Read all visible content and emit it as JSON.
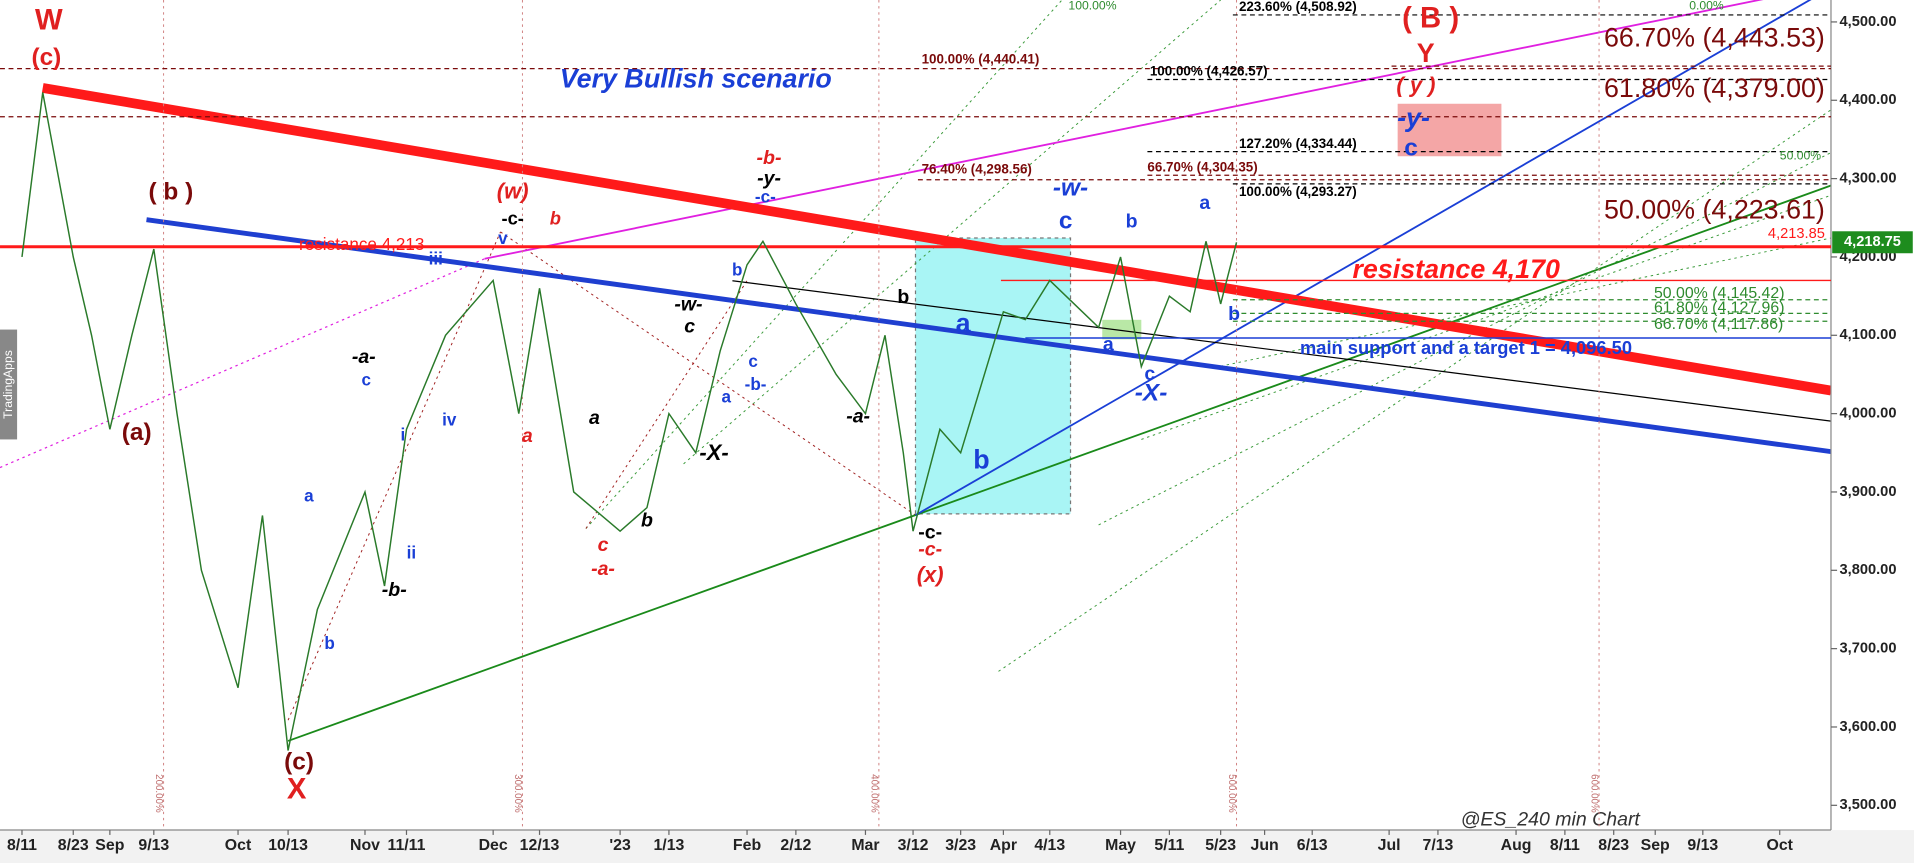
{
  "chart_data": {
    "type": "line",
    "title": "Very Bullish scenario",
    "footer": "@ES_240 min Chart",
    "brand": "TradingApps",
    "color": "#2a7a2a",
    "ylim": [
      3470,
      4528
    ],
    "yticks": [
      {
        "value": 3500,
        "label": "3,500.00"
      },
      {
        "value": 3600,
        "label": "3,600.00"
      },
      {
        "value": 3700,
        "label": "3,700.00"
      },
      {
        "value": 3800,
        "label": "3,800.00"
      },
      {
        "value": 3900,
        "label": "3,900.00"
      },
      {
        "value": 4000,
        "label": "4,000.00"
      },
      {
        "value": 4100,
        "label": "4,100.00"
      },
      {
        "value": 4200,
        "label": "4,200.00"
      },
      {
        "value": 4300,
        "label": "4,300.00"
      },
      {
        "value": 4400,
        "label": "4,400.00"
      },
      {
        "value": 4500,
        "label": "4,500.00"
      }
    ],
    "categories": [
      "8/11",
      null,
      "8/23",
      null,
      "Sep",
      null,
      "9/13",
      null,
      null,
      "Oct",
      null,
      "10/13",
      null,
      "Nov",
      null,
      "11/11",
      null,
      "Dec",
      null,
      "12/13",
      null,
      "'23",
      null,
      "1/13",
      null,
      null,
      "Feb",
      null,
      "2/12",
      null,
      "Mar",
      null,
      null,
      "3/12",
      null,
      "3/23",
      "Apr",
      null,
      "4/13",
      null,
      null,
      "May",
      null,
      "5/11",
      null,
      null,
      "5/23",
      null,
      "Jun",
      "6/13",
      "Jul",
      "7/13",
      "Aug",
      "8/11",
      "8/23",
      "Sep",
      "9/13",
      "Oct"
    ],
    "values": [
      4200,
      4410,
      4200,
      4100,
      3980,
      4100,
      4210,
      4000,
      3800,
      3650,
      3870,
      3570,
      3750,
      3900,
      3780,
      3980,
      4100,
      4170,
      4000,
      4160,
      3900,
      3850,
      3880,
      4000,
      3950,
      4080,
      4190,
      4220,
      4140,
      4050,
      4000,
      4100,
      3950,
      3850,
      3980,
      3950,
      4130,
      4120,
      4170,
      4140,
      4110,
      4200,
      4060,
      4150,
      4130,
      4220,
      4140,
      4218.75,
      null,
      null,
      null,
      null,
      null,
      null,
      null,
      null,
      null,
      null
    ],
    "last": {
      "value": 4218.75,
      "label": "4,218.75"
    },
    "levels": [
      {
        "value": 4508.92,
        "label": "223.60% (4,508.92)",
        "color": "#000000"
      },
      {
        "value": 4440.41,
        "label": "100.00% (4,440.41)",
        "color": "#7a0a0a"
      },
      {
        "value": 4426.57,
        "label": "100.00% (4,426.57)",
        "color": "#000000"
      },
      {
        "value": 4443.53,
        "label": "66.70% (4,443.53)",
        "color": "#7a0a0a"
      },
      {
        "value": 4379,
        "label": "61.80% (4,379.00)",
        "color": "#7a0a0a"
      },
      {
        "value": 4334.44,
        "label": "127.20% (4,334.44)",
        "color": "#000000"
      },
      {
        "value": 4304.35,
        "label": "66.70% (4,304.35)",
        "color": "#7a0a0a"
      },
      {
        "value": 4298.56,
        "label": "76.40% (4,298.56)",
        "color": "#7a0a0a"
      },
      {
        "value": 4293.27,
        "label": "100.00% (4,293.27)",
        "color": "#000000"
      },
      {
        "value": 4223.61,
        "label": "50.00% (4,223.61)",
        "color": "#7a0a0a"
      },
      {
        "value": 4213,
        "label": "resistance 4,213",
        "color": "#ff1a1a"
      },
      {
        "value": 4170,
        "label": "resistance 4,170",
        "color": "#ff1a1a"
      },
      {
        "value": 4145.42,
        "label": "50.00% (4,145.42)",
        "color": "#2e8b2e"
      },
      {
        "value": 4127.96,
        "label": "61.80% (4,127.96)",
        "color": "#2e8b2e"
      },
      {
        "value": 4117.86,
        "label": "66.70% (4,117.86)",
        "color": "#2e8b2e"
      },
      {
        "value": 4096.5,
        "label": "main support and a target 1 = 4,096.50",
        "color": "#1a3fd6"
      },
      {
        "value": 4213.85,
        "label": "4,213.85",
        "color": "#ff1a1a"
      }
    ],
    "time_fibs": [
      "200.00%",
      "300.00%",
      "400.00%",
      "500.00%",
      "600.00%"
    ],
    "labels": [
      {
        "text": "W",
        "color": "#e02020"
      },
      {
        "text": "(c)",
        "color": "#e02020"
      },
      {
        "text": "( b )",
        "color": "#7a0a0a"
      },
      {
        "text": "(a)",
        "color": "#7a0a0a"
      },
      {
        "text": "(c)",
        "color": "#7a0a0a"
      },
      {
        "text": "X",
        "color": "#e02020"
      },
      {
        "text": "(w)",
        "color": "#e02020"
      },
      {
        "text": "-c-",
        "color": "#000000"
      },
      {
        "text": "b",
        "color": "#e02020"
      },
      {
        "text": "v",
        "color": "#1a3fd6"
      },
      {
        "text": "iii",
        "color": "#1a3fd6"
      },
      {
        "text": "-a-",
        "color": "#000000"
      },
      {
        "text": "c",
        "color": "#1a3fd6"
      },
      {
        "text": "i",
        "color": "#1a3fd6"
      },
      {
        "text": "iv",
        "color": "#1a3fd6"
      },
      {
        "text": "a",
        "color": "#1a3fd6"
      },
      {
        "text": "a",
        "color": "#e02020"
      },
      {
        "text": "ii",
        "color": "#1a3fd6"
      },
      {
        "text": "-b-",
        "color": "#000000"
      },
      {
        "text": "b",
        "color": "#1a3fd6"
      },
      {
        "text": "a",
        "color": "#000000"
      },
      {
        "text": "b",
        "color": "#000000"
      },
      {
        "text": "c",
        "color": "#e02020"
      },
      {
        "text": "-a-",
        "color": "#e02020"
      },
      {
        "text": "-w-",
        "color": "#000000"
      },
      {
        "text": "c",
        "color": "#000000"
      },
      {
        "text": "-X-",
        "color": "#000000"
      },
      {
        "text": "b",
        "color": "#1a3fd6"
      },
      {
        "text": "a",
        "color": "#1a3fd6"
      },
      {
        "text": "c",
        "color": "#1a3fd6"
      },
      {
        "text": "-b-",
        "color": "#1a3fd6"
      },
      {
        "text": "-b-",
        "color": "#e02020"
      },
      {
        "text": "-y-",
        "color": "#000000"
      },
      {
        "text": "-c-",
        "color": "#1a3fd6"
      },
      {
        "text": "b",
        "color": "#000000"
      },
      {
        "text": "-a-",
        "color": "#000000"
      },
      {
        "text": "-c-",
        "color": "#000000"
      },
      {
        "text": "-c-",
        "color": "#e02020"
      },
      {
        "text": "(x)",
        "color": "#e02020"
      },
      {
        "text": "a",
        "color": "#1a3fd6"
      },
      {
        "text": "b",
        "color": "#1a3fd6"
      },
      {
        "text": "-w-",
        "color": "#1a3fd6"
      },
      {
        "text": "c",
        "color": "#1a3fd6"
      },
      {
        "text": "b",
        "color": "#1a3fd6"
      },
      {
        "text": "a",
        "color": "#1a3fd6"
      },
      {
        "text": "a",
        "color": "#1a3fd6"
      },
      {
        "text": "c",
        "color": "#1a3fd6"
      },
      {
        "text": "-X-",
        "color": "#1a3fd6"
      },
      {
        "text": "b",
        "color": "#1a3fd6"
      },
      {
        "text": "( B )",
        "color": "#e02020"
      },
      {
        "text": "Y",
        "color": "#e02020"
      },
      {
        "text": "( y )",
        "color": "#e02020"
      },
      {
        "text": "-y-",
        "color": "#1a3fd6"
      },
      {
        "text": "c",
        "color": "#1a3fd6"
      },
      {
        "text": "100.00%",
        "color": "#2e8b2e"
      },
      {
        "text": "50.00%",
        "color": "#2e8b2e"
      },
      {
        "text": "0.00%",
        "color": "#2e8b2e"
      }
    ]
  }
}
